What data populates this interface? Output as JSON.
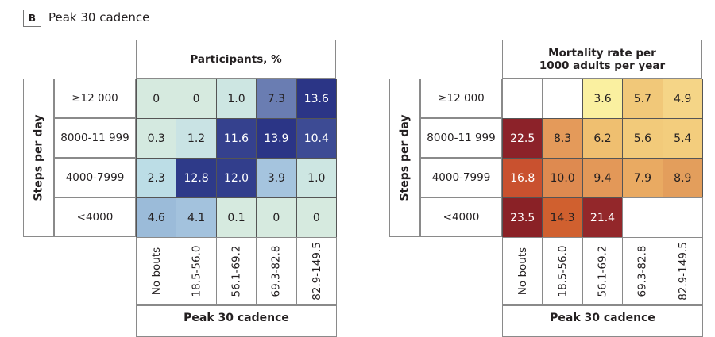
{
  "figure": {
    "panel_letter": "B",
    "panel_title": "Peak 30 cadence"
  },
  "chart_data": [
    {
      "type": "heatmap",
      "title": "Participants, %",
      "ylabel": "Steps per day",
      "xlabel": "Peak 30 cadence",
      "rows": [
        "≥12 000",
        "8000-11 999",
        "4000-7999",
        "<4000"
      ],
      "columns": [
        "No bouts",
        "18.5-56.0",
        "56.1-69.2",
        "69.3-82.8",
        "82.9-149.5"
      ],
      "values": [
        [
          "0",
          "0",
          "1.0",
          "7.3",
          "13.6"
        ],
        [
          "0.3",
          "1.2",
          "11.6",
          "13.9",
          "10.4"
        ],
        [
          "2.3",
          "12.8",
          "12.0",
          "3.9",
          "1.0"
        ],
        [
          "4.6",
          "4.1",
          "0.1",
          "0",
          "0"
        ]
      ],
      "colors": [
        [
          "#d6eadf",
          "#d6eadf",
          "#cde6e2",
          "#6a7db2",
          "#2b3586"
        ],
        [
          "#d4e9e0",
          "#c9e3e4",
          "#35418e",
          "#2b3586",
          "#3d4b94"
        ],
        [
          "#bcdde6",
          "#2e3a89",
          "#323e8c",
          "#a5c4de",
          "#cde6e2"
        ],
        [
          "#9bbbd9",
          "#a3c2dd",
          "#d6eadf",
          "#d6eadf",
          "#d6eadf"
        ]
      ]
    },
    {
      "type": "heatmap",
      "title": "Mortality rate per 1000 adults per year",
      "ylabel": "Steps per day",
      "xlabel": "Peak 30 cadence",
      "rows": [
        "≥12 000",
        "8000-11 999",
        "4000-7999",
        "<4000"
      ],
      "columns": [
        "No bouts",
        "18.5-56.0",
        "56.1-69.2",
        "69.3-82.8",
        "82.9-149.5"
      ],
      "values": [
        [
          null,
          null,
          "3.6",
          "5.7",
          "4.9"
        ],
        [
          "22.5",
          "8.3",
          "6.2",
          "5.6",
          "5.4"
        ],
        [
          "16.8",
          "10.0",
          "9.4",
          "7.9",
          "8.9"
        ],
        [
          "23.5",
          "14.3",
          "21.4",
          null,
          null
        ]
      ],
      "colors": [
        [
          "#ffffff",
          "#ffffff",
          "#faf0a0",
          "#f1c879",
          "#f5d587"
        ],
        [
          "#8c2229",
          "#e49a5a",
          "#efbf70",
          "#f2ca7a",
          "#f3cd7d"
        ],
        [
          "#c9512f",
          "#de8a50",
          "#e39858",
          "#e9aa62",
          "#e39e5c"
        ],
        [
          "#8a2126",
          "#d0602f",
          "#93272a",
          "#ffffff",
          "#ffffff"
        ]
      ]
    }
  ]
}
